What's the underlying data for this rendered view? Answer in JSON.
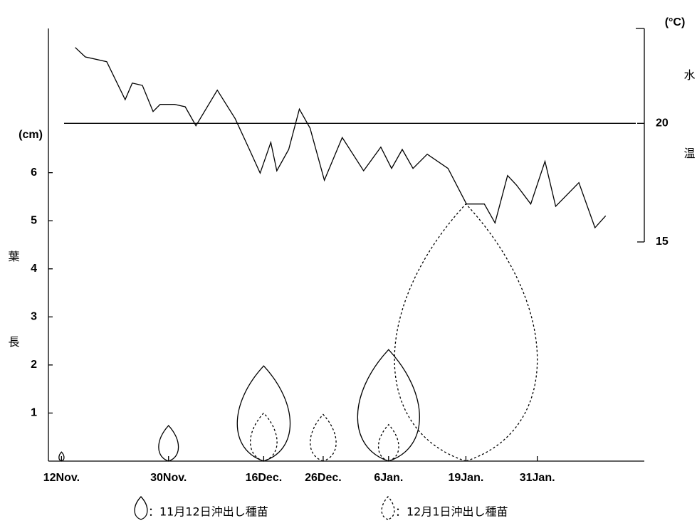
{
  "chart_data": {
    "type": "leaf",
    "y_label": "葉長",
    "y_unit": "(cm)",
    "y2_label": "水温",
    "y2_unit": "(°C)",
    "xlim": [
      -2.2,
      98
    ],
    "xticks": [
      {
        "value": 0,
        "label": "12Nov."
      },
      {
        "value": 18,
        "label": "30Nov."
      },
      {
        "value": 34,
        "label": "16Dec."
      },
      {
        "value": 44,
        "label": "26Dec."
      },
      {
        "value": 55,
        "label": "6Jan."
      },
      {
        "value": 68,
        "label": "19Jan."
      },
      {
        "value": 80,
        "label": "31Jan."
      }
    ],
    "ylim": [
      0,
      9
    ],
    "yticks": [
      1,
      2,
      3,
      4,
      5,
      6
    ],
    "y2lim": [
      15,
      24
    ],
    "y2ticks": [
      15,
      20
    ],
    "reference_line": 20,
    "series": [
      {
        "name": "：11月12日沖出し種苗",
        "color": "#000000",
        "dashed": false,
        "x": [
          0,
          18,
          34,
          55
        ],
        "values": [
          0.19,
          0.74,
          1.98,
          2.32
        ]
      },
      {
        "name": "：12月1日沖出し種苗",
        "color": "#000000",
        "dashed": true,
        "x": [
          34,
          44,
          55,
          68
        ],
        "values": [
          1.0,
          0.97,
          0.76,
          5.35
        ]
      }
    ],
    "temperature": {
      "axis": "y2",
      "color": "#000000",
      "x": [
        2.3,
        4,
        7.6,
        10.7,
        11.9,
        13.6,
        15.4,
        16.6,
        19,
        20.8,
        22.6,
        26.2,
        29.2,
        31.6,
        33.4,
        35.2,
        36.2,
        38.2,
        40,
        41.8,
        44.2,
        47.2,
        50.8,
        53.7,
        55.5,
        57.3,
        59.1,
        61.5,
        65,
        68.1,
        71.1,
        72.9,
        75,
        76.5,
        78.9,
        81.3,
        83.1,
        87,
        89.7,
        91.5
      ],
      "values": [
        23.2,
        22.8,
        22.6,
        21.0,
        21.7,
        21.6,
        20.5,
        20.8,
        20.8,
        20.7,
        19.9,
        21.4,
        20.2,
        18.9,
        17.9,
        19.2,
        18.0,
        18.9,
        20.6,
        19.8,
        17.6,
        19.4,
        18.0,
        19.0,
        18.1,
        18.9,
        18.1,
        18.7,
        18.1,
        16.6,
        16.6,
        15.8,
        17.8,
        17.4,
        16.6,
        18.4,
        16.5,
        17.5,
        15.6,
        16.1
      ]
    }
  }
}
